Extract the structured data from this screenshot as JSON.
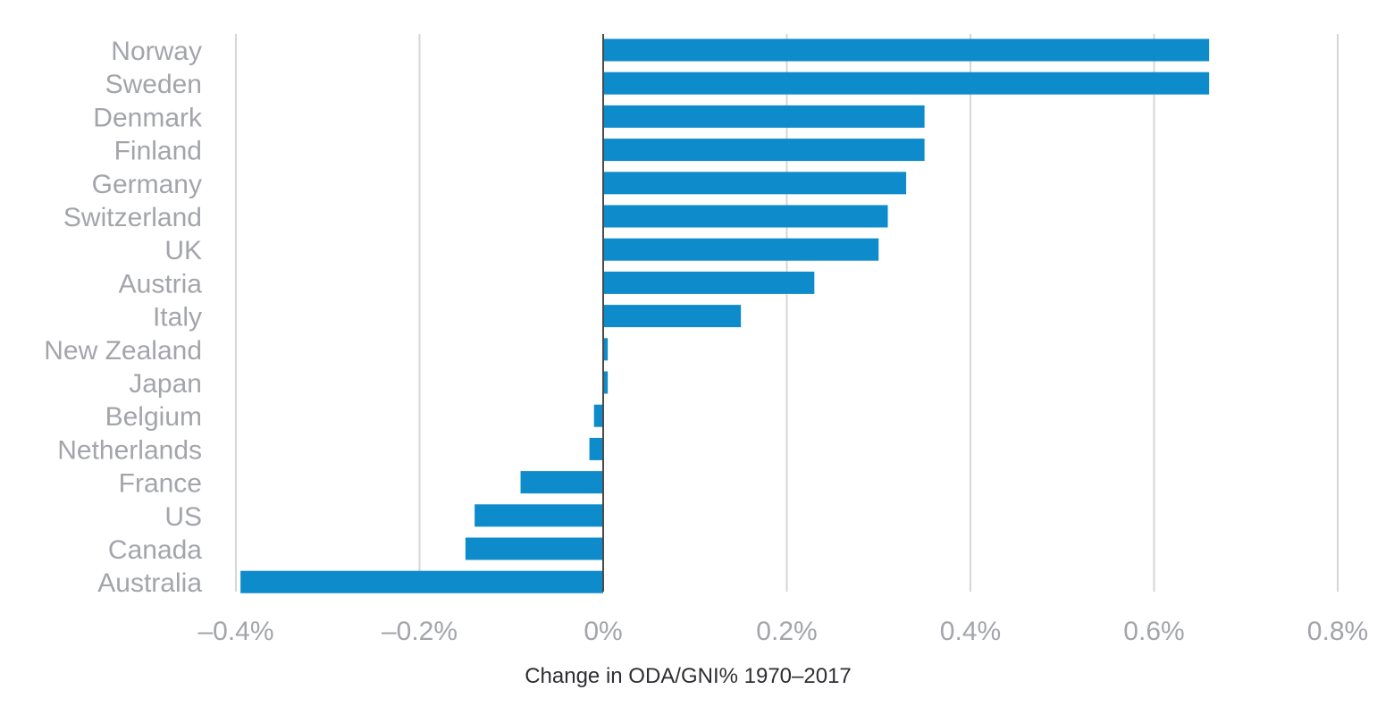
{
  "chart_data": {
    "type": "bar",
    "orientation": "horizontal",
    "categories": [
      "Norway",
      "Sweden",
      "Denmark",
      "Finland",
      "Germany",
      "Switzerland",
      "UK",
      "Austria",
      "Italy",
      "New Zealand",
      "Japan",
      "Belgium",
      "Netherlands",
      "France",
      "US",
      "Canada",
      "Australia"
    ],
    "values": [
      0.66,
      0.66,
      0.35,
      0.35,
      0.33,
      0.31,
      0.3,
      0.23,
      0.15,
      0.005,
      0.005,
      -0.01,
      -0.015,
      -0.09,
      -0.14,
      -0.15,
      -0.395
    ],
    "title": "",
    "xlabel": "Change in ODA/GNI% 1970–2017",
    "ylabel": "",
    "xlim": [
      -0.4,
      0.8
    ],
    "xticks": [
      -0.4,
      -0.2,
      0,
      0.2,
      0.4,
      0.6,
      0.8
    ],
    "xtick_labels": [
      "–0.4%",
      "–0.2%",
      "0%",
      "0.2%",
      "0.4%",
      "0.6%",
      "0.8%"
    ],
    "grid": true,
    "legend": "none",
    "colors": {
      "bar": "#0e8bcb",
      "grid": "#d6d6d6",
      "zero_line": "#4a4a4a",
      "label": "#a3a5aa",
      "axis_title": "#2f2f33"
    }
  }
}
